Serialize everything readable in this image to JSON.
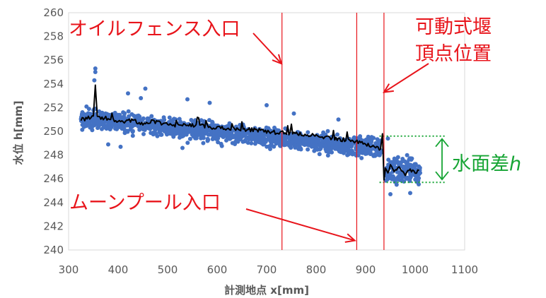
{
  "chart_data": {
    "type": "scatter",
    "title": "",
    "xlabel": "計測地点 x[mm]",
    "ylabel": "水位 h[mm]",
    "xlim": [
      300,
      1100
    ],
    "ylim": [
      240,
      260
    ],
    "xticks": [
      300,
      400,
      500,
      600,
      700,
      800,
      900,
      1000,
      1100
    ],
    "yticks": [
      240,
      242,
      244,
      246,
      248,
      250,
      252,
      254,
      256,
      258,
      260
    ],
    "grid": false,
    "legend": "none",
    "series": [
      {
        "kind": "scatter",
        "color": "#4472c4",
        "segments": [
          {
            "x_range": [
              325,
              930
            ],
            "y_start": 251.1,
            "y_end": 248.5,
            "spread": 0.55
          },
          {
            "x_range": [
              940,
              1010
            ],
            "y_start": 246.8,
            "y_end": 246.6,
            "spread": 0.75
          }
        ],
        "outliers": [
          {
            "x": 354,
            "y": 255.3
          },
          {
            "x": 354,
            "y": 255.0
          },
          {
            "x": 352,
            "y": 254.3
          },
          {
            "x": 420,
            "y": 253.2
          },
          {
            "x": 455,
            "y": 253.6
          },
          {
            "x": 446,
            "y": 252.8
          },
          {
            "x": 540,
            "y": 252.7
          },
          {
            "x": 585,
            "y": 252.4
          },
          {
            "x": 700,
            "y": 252.2
          },
          {
            "x": 755,
            "y": 251.5
          },
          {
            "x": 845,
            "y": 251.0
          },
          {
            "x": 380,
            "y": 248.9
          },
          {
            "x": 405,
            "y": 248.7
          },
          {
            "x": 530,
            "y": 248.6
          },
          {
            "x": 950,
            "y": 244.7
          },
          {
            "x": 990,
            "y": 244.8
          },
          {
            "x": 945,
            "y": 249.4
          }
        ]
      },
      {
        "kind": "line",
        "color": "#000000",
        "x": [
          325,
          340,
          350,
          354,
          358,
          370,
          390,
          410,
          430,
          450,
          470,
          500,
          530,
          560,
          600,
          640,
          680,
          720,
          760,
          800,
          840,
          880,
          900,
          920,
          930,
          934,
          937,
          940,
          945,
          950,
          960,
          970,
          980,
          990,
          1000,
          1008
        ],
        "y": [
          251.0,
          251.1,
          251.3,
          253.9,
          251.2,
          251.0,
          250.9,
          250.8,
          250.9,
          250.7,
          250.8,
          250.6,
          250.5,
          250.5,
          250.3,
          250.2,
          250.1,
          249.9,
          249.8,
          249.6,
          249.4,
          249.1,
          248.9,
          248.7,
          248.5,
          249.8,
          245.9,
          246.9,
          246.5,
          247.0,
          246.7,
          246.9,
          246.4,
          246.8,
          246.6,
          246.7
        ]
      }
    ],
    "vertical_lines": [
      {
        "x": 731,
        "color": "#e8141b"
      },
      {
        "x": 882,
        "color": "#e8141b"
      },
      {
        "x": 937,
        "color": "#e8141b"
      }
    ],
    "reference_lines": [
      {
        "y": 249.6,
        "x_range": [
          928,
          1062
        ],
        "color": "#17a535",
        "style": "dotted"
      },
      {
        "y": 245.7,
        "x_range": [
          928,
          1062
        ],
        "color": "#17a535",
        "style": "dotted"
      }
    ],
    "annotations": [
      {
        "text": "オイルフェンス入口",
        "color": "#e8141b",
        "arrow_to": {
          "x": 730,
          "y": 255.7
        }
      },
      {
        "text": "可動式堰",
        "color": "#e8141b"
      },
      {
        "text": "頂点位置",
        "color": "#e8141b",
        "arrow_to": {
          "x": 937,
          "y": 253.3
        }
      },
      {
        "text": "ムーンプール入口",
        "color": "#e8141b",
        "arrow_to": {
          "x": 878,
          "y": 240.8
        }
      },
      {
        "text": "水面差",
        "color": "#17a535"
      },
      {
        "text": "h",
        "color": "#17a535",
        "style": "italic"
      }
    ]
  }
}
